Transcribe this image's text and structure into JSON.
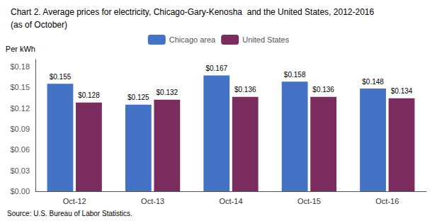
{
  "chart_data": {
    "type": "bar",
    "title": "Chart 2. Average prices for electricity, Chicago-Gary-Kenosha  and the United States, 2012-2016",
    "subtitle": "(as of October)",
    "ylabel": "Per kWh",
    "annotations": [
      "Source: U.S. Bureau of Labor Statistics."
    ],
    "categories": [
      "Oct-12",
      "Oct-13",
      "Oct-14",
      "Oct-15",
      "Oct-16"
    ],
    "series": [
      {
        "name": "Chicago area",
        "color": "#4472C4",
        "values": [
          0.155,
          0.125,
          0.167,
          0.158,
          0.148
        ],
        "value_labels": [
          "$0.155",
          "$0.125",
          "$0.167",
          "$0.158",
          "$0.148"
        ]
      },
      {
        "name": "United States",
        "color": "#7B2C5E",
        "values": [
          0.128,
          0.132,
          0.136,
          0.136,
          0.134
        ],
        "value_labels": [
          "$0.128",
          "$0.132",
          "$0.136",
          "$0.136",
          "$0.134"
        ]
      }
    ],
    "ylim": [
      0,
      0.19
    ],
    "yticks": [
      {
        "value": 0.0,
        "label": "$0.00"
      },
      {
        "value": 0.03,
        "label": "$0.03"
      },
      {
        "value": 0.06,
        "label": "$0.06"
      },
      {
        "value": 0.09,
        "label": "$0.09"
      },
      {
        "value": 0.12,
        "label": "$0.12"
      },
      {
        "value": 0.15,
        "label": "$0.15"
      },
      {
        "value": 0.18,
        "label": "$0.18"
      }
    ],
    "grid": false,
    "legend": "upper center",
    "data_labels": true
  }
}
